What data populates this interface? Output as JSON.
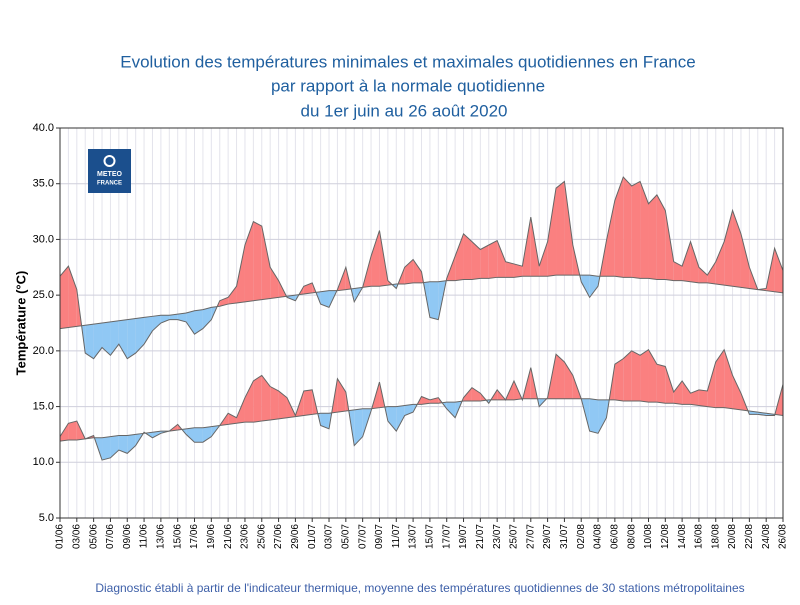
{
  "chart_data": {
    "type": "anomaly-band",
    "title_lines": [
      "Evolution des températures minimales et maximales quotidiennes en France",
      "par rapport à la normale quotidienne",
      "du 1er juin au 26 août 2020"
    ],
    "y_label": "Température (°C)",
    "footer": "Diagnostic établi à partir de l'indicateur thermique, moyenne des températures quotidiennes de 30 stations métropolitaines",
    "logo": [
      "METEO",
      "FRANCE"
    ],
    "categories": [
      "01/06",
      null,
      "03/06",
      null,
      "05/06",
      null,
      "07/06",
      null,
      "09/06",
      null,
      "11/06",
      null,
      "13/06",
      null,
      "15/06",
      null,
      "17/06",
      null,
      "19/06",
      null,
      "21/06",
      null,
      "23/06",
      null,
      "25/06",
      null,
      "27/06",
      null,
      "29/06",
      null,
      "01/07",
      null,
      "03/07",
      null,
      "05/07",
      null,
      "07/07",
      null,
      "09/07",
      null,
      "11/07",
      null,
      "13/07",
      null,
      "15/07",
      null,
      "17/07",
      null,
      "19/07",
      null,
      "21/07",
      null,
      "23/07",
      null,
      "25/07",
      null,
      "27/07",
      null,
      "29/07",
      null,
      "31/07",
      null,
      "02/08",
      null,
      "04/08",
      null,
      "06/08",
      null,
      "08/08",
      null,
      "10/08",
      null,
      "12/08",
      null,
      "14/08",
      null,
      "16/08",
      null,
      "18/08",
      null,
      "20/08",
      null,
      "22/08",
      null,
      "24/08",
      null,
      "26/08"
    ],
    "series": [
      {
        "line_color": "#666666",
        "values": [
          26.7,
          27.6,
          25.5,
          19.8,
          19.3,
          20.3,
          19.6,
          20.6,
          19.3,
          19.8,
          20.6,
          21.8,
          22.5,
          22.8,
          22.8,
          22.6,
          21.5,
          22.0,
          22.8,
          24.5,
          24.8,
          25.8,
          29.5,
          31.6,
          31.2,
          27.5,
          26.3,
          24.8,
          24.5,
          25.8,
          26.1,
          24.2,
          23.9,
          25.5,
          27.5,
          24.4,
          25.7,
          28.5,
          30.8,
          26.3,
          25.6,
          27.5,
          28.2,
          27.1,
          23.0,
          22.8,
          26.5,
          28.5,
          30.5,
          29.8,
          29.1,
          29.5,
          29.9,
          28.0,
          27.8,
          27.6,
          32.0,
          27.6,
          29.8,
          34.6,
          35.2,
          29.5,
          26.2,
          24.8,
          25.8,
          29.9,
          33.5,
          35.6,
          34.8,
          35.2,
          33.2,
          34.0,
          32.6,
          28.0,
          27.6,
          29.8,
          27.5,
          26.8,
          28.0,
          29.8,
          32.6,
          30.5,
          27.5,
          25.5,
          25.6,
          29.2,
          27.2
        ],
        "normal": [
          22.0,
          22.1,
          22.2,
          22.3,
          22.4,
          22.5,
          22.6,
          22.7,
          22.8,
          22.9,
          23.0,
          23.1,
          23.2,
          23.2,
          23.3,
          23.4,
          23.6,
          23.7,
          23.9,
          24.0,
          24.2,
          24.3,
          24.4,
          24.5,
          24.6,
          24.7,
          24.8,
          24.9,
          25.0,
          25.1,
          25.2,
          25.3,
          25.4,
          25.4,
          25.5,
          25.6,
          25.7,
          25.8,
          25.8,
          25.9,
          26.0,
          26.0,
          26.1,
          26.1,
          26.2,
          26.2,
          26.3,
          26.3,
          26.4,
          26.4,
          26.5,
          26.5,
          26.6,
          26.6,
          26.6,
          26.7,
          26.7,
          26.7,
          26.7,
          26.8,
          26.8,
          26.8,
          26.8,
          26.8,
          26.7,
          26.7,
          26.7,
          26.6,
          26.6,
          26.5,
          26.5,
          26.4,
          26.4,
          26.3,
          26.3,
          26.2,
          26.1,
          26.1,
          26.0,
          25.9,
          25.8,
          25.7,
          25.6,
          25.5,
          25.4,
          25.3,
          25.2
        ]
      },
      {
        "line_color": "#666666",
        "values": [
          12.3,
          13.5,
          13.7,
          12.1,
          12.4,
          10.2,
          10.4,
          11.1,
          10.8,
          11.5,
          12.7,
          12.2,
          12.6,
          12.8,
          13.4,
          12.5,
          11.8,
          11.8,
          12.3,
          13.3,
          14.4,
          14.0,
          15.8,
          17.3,
          17.8,
          16.8,
          16.4,
          15.8,
          14.2,
          16.4,
          16.5,
          13.3,
          13.0,
          17.5,
          16.3,
          11.5,
          12.3,
          14.6,
          17.2,
          13.7,
          12.8,
          14.2,
          14.5,
          15.9,
          15.6,
          15.8,
          14.8,
          14.0,
          15.8,
          16.7,
          16.2,
          15.3,
          16.5,
          15.6,
          17.3,
          15.6,
          18.5,
          15.0,
          15.8,
          19.7,
          19.0,
          17.8,
          15.7,
          12.8,
          12.6,
          14.0,
          18.8,
          19.3,
          20.0,
          19.6,
          20.1,
          18.8,
          18.6,
          16.3,
          17.3,
          16.2,
          16.5,
          16.4,
          19.0,
          20.1,
          17.8,
          16.2,
          14.3,
          14.3,
          14.2,
          14.2,
          17.0
        ],
        "normal": [
          11.9,
          12.0,
          12.0,
          12.1,
          12.2,
          12.2,
          12.3,
          12.4,
          12.4,
          12.5,
          12.6,
          12.7,
          12.8,
          12.8,
          12.9,
          13.0,
          13.1,
          13.1,
          13.2,
          13.3,
          13.4,
          13.5,
          13.6,
          13.6,
          13.7,
          13.8,
          13.9,
          14.0,
          14.1,
          14.2,
          14.3,
          14.4,
          14.4,
          14.5,
          14.6,
          14.7,
          14.8,
          14.8,
          14.9,
          15.0,
          15.0,
          15.1,
          15.2,
          15.2,
          15.3,
          15.3,
          15.4,
          15.4,
          15.5,
          15.5,
          15.5,
          15.6,
          15.6,
          15.6,
          15.6,
          15.7,
          15.7,
          15.7,
          15.7,
          15.7,
          15.7,
          15.7,
          15.7,
          15.7,
          15.6,
          15.6,
          15.6,
          15.5,
          15.5,
          15.5,
          15.4,
          15.4,
          15.3,
          15.3,
          15.2,
          15.2,
          15.1,
          15.0,
          14.9,
          14.9,
          14.8,
          14.7,
          14.6,
          14.5,
          14.4,
          14.3,
          14.2
        ]
      }
    ],
    "above_color": "#fa8080",
    "below_color": "#90c8f4",
    "ylim": [
      5,
      40
    ],
    "yticks": [
      {
        "value": 5,
        "label": "5.0"
      },
      {
        "value": 10,
        "label": "10.0"
      },
      {
        "value": 15,
        "label": "15.0"
      },
      {
        "value": 20,
        "label": "20.0"
      },
      {
        "value": 25,
        "label": "25.0"
      },
      {
        "value": 30,
        "label": "30.0"
      },
      {
        "value": 35,
        "label": "35.0"
      },
      {
        "value": 40,
        "label": "40.0"
      }
    ],
    "grid": true
  }
}
